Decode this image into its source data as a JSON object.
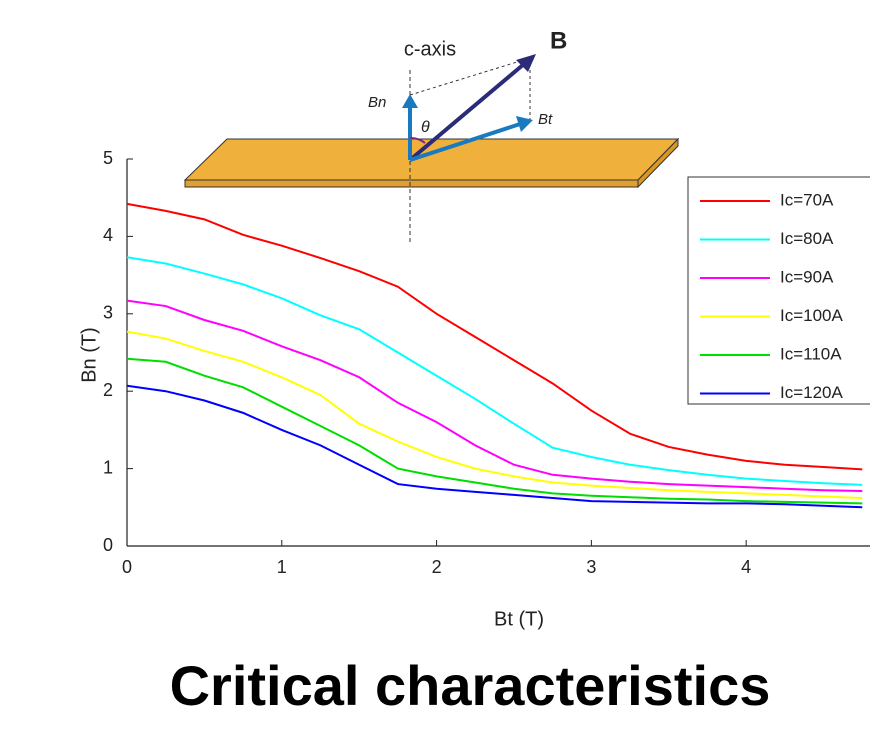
{
  "chart_data": {
    "type": "line",
    "title": "Critical characteristics",
    "x_label": "Bt (T)",
    "y_label": "Bn (T)",
    "x": [
      0,
      0.25,
      0.5,
      0.75,
      1,
      1.25,
      1.5,
      1.75,
      2,
      2.25,
      2.5,
      2.75,
      3,
      3.25,
      3.5,
      3.75,
      4,
      4.25,
      4.5,
      4.75
    ],
    "series": [
      {
        "name": "Ic=70A",
        "color": "#ff0000",
        "values": [
          4.42,
          4.33,
          4.22,
          4.02,
          3.88,
          3.72,
          3.55,
          3.35,
          3.0,
          2.7,
          2.4,
          2.1,
          1.75,
          1.45,
          1.28,
          1.18,
          1.1,
          1.05,
          1.02,
          0.99
        ]
      },
      {
        "name": "Ic=80A",
        "color": "#00ffff",
        "values": [
          3.73,
          3.65,
          3.52,
          3.38,
          3.2,
          2.98,
          2.8,
          2.5,
          2.2,
          1.9,
          1.58,
          1.27,
          1.15,
          1.05,
          0.98,
          0.92,
          0.87,
          0.84,
          0.81,
          0.79
        ]
      },
      {
        "name": "Ic=90A",
        "color": "#ff00ff",
        "values": [
          3.17,
          3.1,
          2.92,
          2.78,
          2.58,
          2.4,
          2.18,
          1.85,
          1.6,
          1.3,
          1.05,
          0.92,
          0.87,
          0.83,
          0.8,
          0.78,
          0.76,
          0.74,
          0.72,
          0.71
        ]
      },
      {
        "name": "Ic=100A",
        "color": "#ffff00",
        "values": [
          2.77,
          2.68,
          2.52,
          2.38,
          2.18,
          1.95,
          1.58,
          1.35,
          1.15,
          1.0,
          0.9,
          0.82,
          0.78,
          0.75,
          0.72,
          0.7,
          0.68,
          0.66,
          0.64,
          0.62
        ]
      },
      {
        "name": "Ic=110A",
        "color": "#00dd00",
        "values": [
          2.42,
          2.38,
          2.2,
          2.05,
          1.8,
          1.55,
          1.3,
          1.0,
          0.9,
          0.82,
          0.74,
          0.68,
          0.65,
          0.63,
          0.61,
          0.6,
          0.58,
          0.57,
          0.56,
          0.55
        ]
      },
      {
        "name": "Ic=120A",
        "color": "#0000ff",
        "values": [
          2.07,
          2.0,
          1.88,
          1.72,
          1.5,
          1.3,
          1.05,
          0.8,
          0.74,
          0.7,
          0.66,
          0.62,
          0.58,
          0.57,
          0.56,
          0.55,
          0.55,
          0.54,
          0.52,
          0.5
        ]
      }
    ],
    "xlim": [
      0,
      4.8
    ],
    "xticks": [
      0,
      1,
      2,
      3,
      4
    ],
    "ylim": [
      0,
      5
    ],
    "yticks": [
      0,
      1,
      2,
      3,
      4,
      5
    ],
    "legend": "upper right",
    "inset": {
      "axis_label": "c-axis",
      "vector": "B",
      "normal": "Bn",
      "tangent": "Bt",
      "angle": "θ"
    }
  }
}
